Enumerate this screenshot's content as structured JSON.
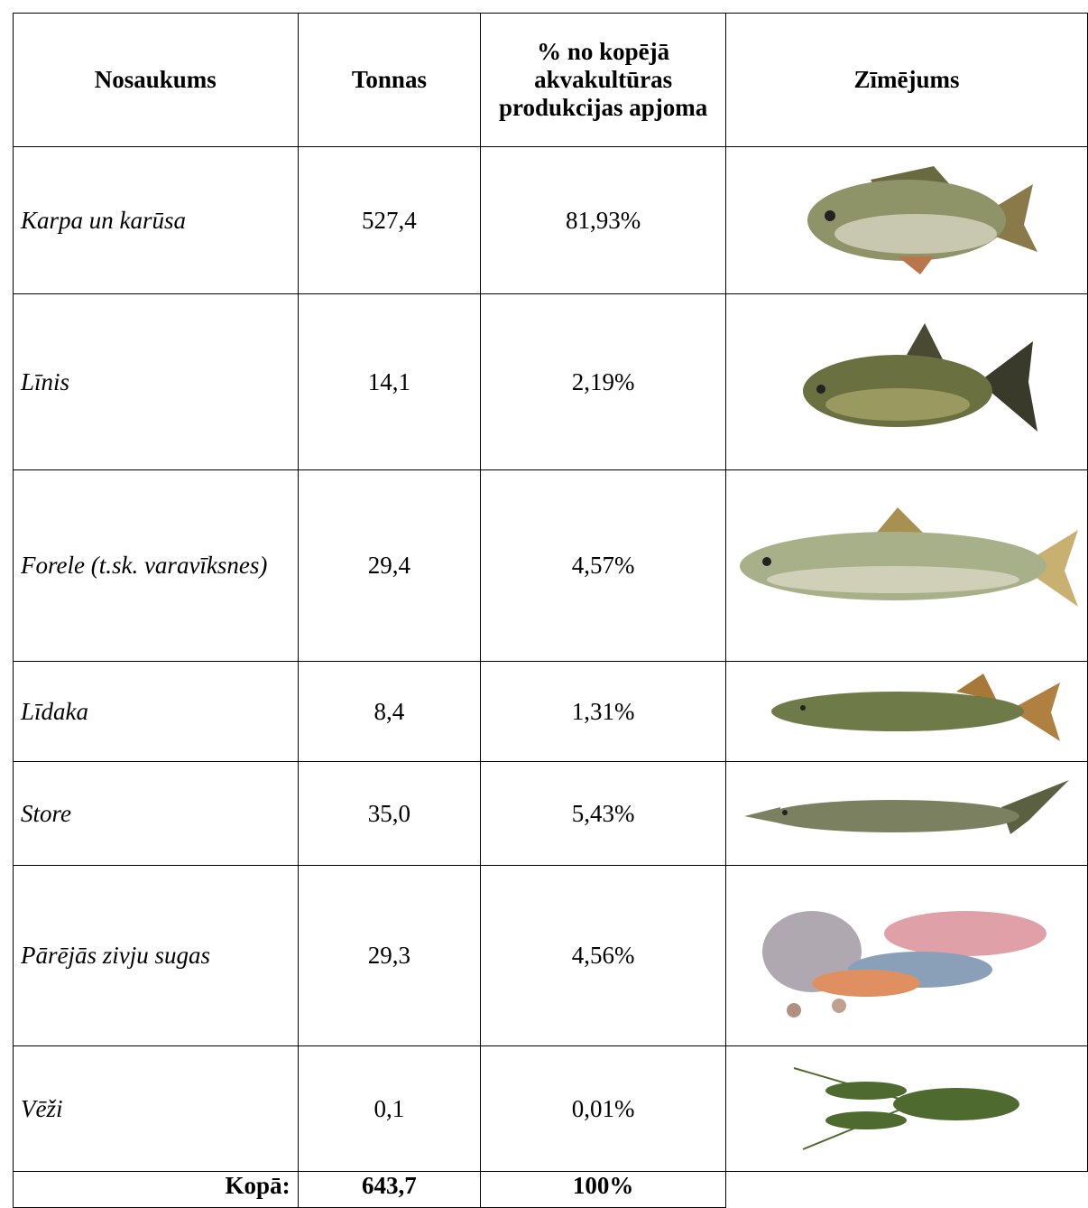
{
  "table": {
    "header": [
      "Nosaukums",
      "Tonnas",
      "% no kopējā akvakultūras produkcijas apjoma",
      "Zīmējums"
    ],
    "rows": [
      [
        "Karpa un karūsa",
        "527,4",
        "81,93%"
      ],
      [
        "Līnis",
        "14,1",
        "2,19%"
      ],
      [
        "Forele (t.sk. varavīksnes)",
        "29,4",
        "4,57%"
      ],
      [
        "Līdaka",
        "8,4",
        "1,31%"
      ],
      [
        "Store",
        "35,0",
        "5,43%"
      ],
      [
        "Pārējās zivju sugas",
        "29,3",
        "4,56%"
      ],
      [
        "Vēži",
        "0,1",
        "0,01%"
      ]
    ],
    "total": [
      "Kopā:",
      "643,7",
      "100%"
    ]
  }
}
